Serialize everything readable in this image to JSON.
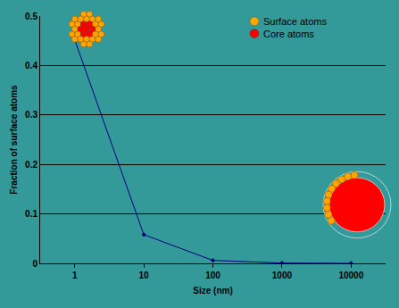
{
  "chart_data": {
    "type": "line",
    "categories": [
      "1",
      "10",
      "100",
      "1000",
      "10000"
    ],
    "values": [
      0.452,
      0.058,
      0.006,
      0.0006,
      6e-05
    ],
    "color": "#000080",
    "marker": "diamond",
    "x_label": "Size (nm)",
    "y_label": "Fraction of surface atoms",
    "ylim": [
      0,
      0.5
    ],
    "yticks": [
      0,
      0.1,
      0.2,
      0.3,
      0.4,
      0.5
    ],
    "grid": true,
    "annotations": [
      {
        "text": "Surface atoms",
        "color": "#ffa500"
      },
      {
        "text": "Core atoms",
        "color": "#ff0000"
      }
    ]
  }
}
